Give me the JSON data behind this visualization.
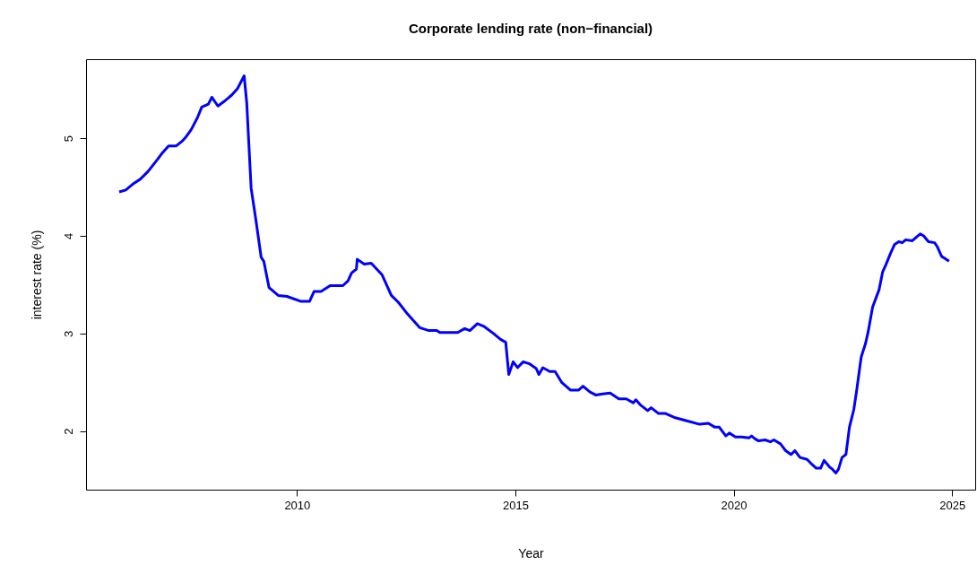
{
  "chart_data": {
    "type": "line",
    "title": "Corporate lending rate (non−financial)",
    "xlabel": "Year",
    "ylabel": "interest rate (%)",
    "xlim": [
      2005.17,
      2025.53
    ],
    "ylim": [
      1.4,
      5.81
    ],
    "xticks": [
      2010,
      2015,
      2020,
      2025
    ],
    "yticks": [
      2,
      3,
      4,
      5
    ],
    "grid": false,
    "line_style": "solid",
    "marker": "none",
    "series": [
      {
        "color": "#0000ff",
        "x": [
          2005.93,
          2006.08,
          2006.24,
          2006.41,
          2006.59,
          2006.8,
          2006.9,
          2007.06,
          2007.23,
          2007.37,
          2007.47,
          2007.58,
          2007.72,
          2007.82,
          2007.97,
          2008.05,
          2008.19,
          2008.34,
          2008.5,
          2008.64,
          2008.79,
          2008.85,
          2008.95,
          2009.06,
          2009.18,
          2009.24,
          2009.36,
          2009.57,
          2009.77,
          2010.08,
          2010.29,
          2010.39,
          2010.55,
          2010.76,
          2011.05,
          2011.17,
          2011.25,
          2011.36,
          2011.38,
          2011.54,
          2011.7,
          2011.95,
          2012.16,
          2012.32,
          2012.53,
          2012.69,
          2012.81,
          2013.02,
          2013.2,
          2013.27,
          2013.68,
          2013.84,
          2013.96,
          2014.13,
          2014.29,
          2014.5,
          2014.66,
          2014.78,
          2014.85,
          2014.95,
          2015.05,
          2015.18,
          2015.32,
          2015.48,
          2015.54,
          2015.63,
          2015.79,
          2015.91,
          2016.06,
          2016.26,
          2016.45,
          2016.55,
          2016.71,
          2016.84,
          2017.0,
          2017.17,
          2017.37,
          2017.54,
          2017.7,
          2017.76,
          2017.86,
          2018.03,
          2018.11,
          2018.28,
          2018.44,
          2018.64,
          2018.89,
          2019.22,
          2019.42,
          2019.57,
          2019.67,
          2019.82,
          2019.9,
          2020.04,
          2020.18,
          2020.35,
          2020.41,
          2020.49,
          2020.57,
          2020.72,
          2020.84,
          2020.92,
          2021.07,
          2021.19,
          2021.31,
          2021.4,
          2021.52,
          2021.68,
          2021.79,
          2021.89,
          2021.99,
          2022.07,
          2022.2,
          2022.26,
          2022.34,
          2022.4,
          2022.48,
          2022.57,
          2022.65,
          2022.75,
          2022.81,
          2022.92,
          2023.02,
          2023.08,
          2023.18,
          2023.33,
          2023.41,
          2023.49,
          2023.59,
          2023.68,
          2023.78,
          2023.86,
          2023.94,
          2024.09,
          2024.19,
          2024.27,
          2024.35,
          2024.46,
          2024.6,
          2024.66,
          2024.76,
          2024.83,
          2024.93
        ],
        "values": [
          4.45,
          4.47,
          4.53,
          4.58,
          4.66,
          4.78,
          4.84,
          4.92,
          4.92,
          4.97,
          5.02,
          5.09,
          5.21,
          5.32,
          5.35,
          5.42,
          5.33,
          5.38,
          5.44,
          5.51,
          5.64,
          5.36,
          4.49,
          4.16,
          3.78,
          3.74,
          3.47,
          3.39,
          3.38,
          3.33,
          3.33,
          3.43,
          3.43,
          3.49,
          3.49,
          3.54,
          3.62,
          3.66,
          3.76,
          3.71,
          3.72,
          3.6,
          3.39,
          3.32,
          3.2,
          3.12,
          3.06,
          3.03,
          3.03,
          3.01,
          3.01,
          3.05,
          3.03,
          3.1,
          3.07,
          3.0,
          2.94,
          2.91,
          2.58,
          2.71,
          2.65,
          2.71,
          2.69,
          2.64,
          2.58,
          2.65,
          2.61,
          2.61,
          2.5,
          2.42,
          2.42,
          2.46,
          2.4,
          2.37,
          2.38,
          2.39,
          2.33,
          2.33,
          2.29,
          2.32,
          2.27,
          2.21,
          2.24,
          2.18,
          2.18,
          2.14,
          2.11,
          2.07,
          2.08,
          2.04,
          2.04,
          1.95,
          1.98,
          1.94,
          1.94,
          1.93,
          1.95,
          1.92,
          1.9,
          1.91,
          1.89,
          1.91,
          1.87,
          1.8,
          1.76,
          1.8,
          1.73,
          1.71,
          1.66,
          1.62,
          1.62,
          1.7,
          1.63,
          1.61,
          1.57,
          1.61,
          1.73,
          1.76,
          2.04,
          2.22,
          2.4,
          2.76,
          2.9,
          3.02,
          3.27,
          3.45,
          3.63,
          3.71,
          3.82,
          3.91,
          3.94,
          3.93,
          3.96,
          3.95,
          3.99,
          4.02,
          4.0,
          3.94,
          3.93,
          3.89,
          3.79,
          3.77,
          3.74
        ]
      }
    ]
  }
}
